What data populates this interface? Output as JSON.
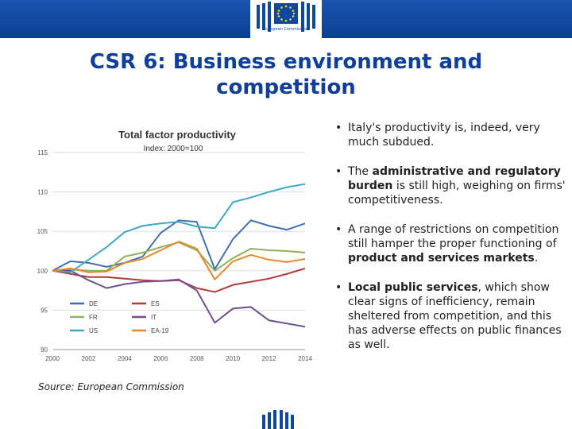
{
  "header": {
    "logo_text": "European Commission",
    "band_color": "#0e47a1"
  },
  "slide": {
    "title": "CSR 6: Business environment and competition",
    "source": "Source: European Commission"
  },
  "bullets": [
    {
      "parts": [
        {
          "text": "Italy's productivity is, indeed, very much subdued.",
          "bold": false
        }
      ]
    },
    {
      "parts": [
        {
          "text": "The ",
          "bold": false
        },
        {
          "text": "administrative and regulatory burden",
          "bold": true
        },
        {
          "text": " is still high, weighing on firms' competitiveness.",
          "bold": false
        }
      ]
    },
    {
      "parts": [
        {
          "text": "A range of restrictions on competition still hamper the proper functioning of ",
          "bold": false
        },
        {
          "text": "product and services markets",
          "bold": true
        },
        {
          "text": ".",
          "bold": false
        }
      ]
    },
    {
      "parts": [
        {
          "text": "Local public services",
          "bold": true
        },
        {
          "text": ", which show clear signs of inefficiency, remain sheltered from competition, and this has adverse effects on public finances as well.",
          "bold": false
        }
      ]
    }
  ],
  "chart_data": {
    "type": "line",
    "title": "Total factor productivity",
    "subtitle": "Index: 2000=100",
    "xlabel": "",
    "ylabel": "",
    "x": [
      2000,
      2001,
      2002,
      2003,
      2004,
      2005,
      2006,
      2007,
      2008,
      2009,
      2010,
      2011,
      2012,
      2013,
      2014
    ],
    "x_ticks": [
      "2000",
      "2002",
      "2004",
      "2006",
      "2008",
      "2010",
      "2012",
      "2014"
    ],
    "y_ticks": [
      "90",
      "95",
      "100",
      "105",
      "110",
      "115"
    ],
    "ylim": [
      90,
      115
    ],
    "xlim": [
      2000,
      2014
    ],
    "grid": true,
    "legend_position": "bottom-left",
    "series": [
      {
        "name": "DE",
        "color": "#3f6fb0",
        "values": [
          100,
          101.2,
          101.0,
          100.5,
          101.0,
          101.8,
          104.8,
          106.4,
          106.2,
          100.2,
          104.0,
          106.4,
          105.7,
          105.2,
          106.0
        ]
      },
      {
        "name": "ES",
        "color": "#b23a3a",
        "values": [
          100,
          99.6,
          99.2,
          99.2,
          99.0,
          98.8,
          98.7,
          98.8,
          97.8,
          97.3,
          98.2,
          98.6,
          99.0,
          99.6,
          100.3
        ]
      },
      {
        "name": "FR",
        "color": "#93b05a",
        "values": [
          100,
          100.2,
          100.0,
          100.0,
          101.8,
          102.3,
          103.0,
          103.6,
          102.6,
          100.0,
          101.6,
          102.8,
          102.6,
          102.5,
          102.3
        ]
      },
      {
        "name": "IT",
        "color": "#6f4f8f",
        "values": [
          100,
          100.0,
          98.8,
          97.8,
          98.3,
          98.6,
          98.7,
          98.9,
          97.5,
          93.4,
          95.2,
          95.4,
          93.7,
          93.3,
          92.9
        ]
      },
      {
        "name": "US",
        "color": "#3fa8c6",
        "values": [
          100,
          99.8,
          101.4,
          103.0,
          104.9,
          105.7,
          106.0,
          106.2,
          105.6,
          105.4,
          108.7,
          109.3,
          110.0,
          110.6,
          111.0
        ]
      },
      {
        "name": "EA-19",
        "color": "#e38a2b",
        "values": [
          100,
          100.3,
          99.8,
          99.9,
          101.0,
          101.5,
          102.6,
          103.7,
          102.8,
          98.9,
          101.2,
          102.0,
          101.4,
          101.1,
          101.5
        ]
      }
    ]
  }
}
